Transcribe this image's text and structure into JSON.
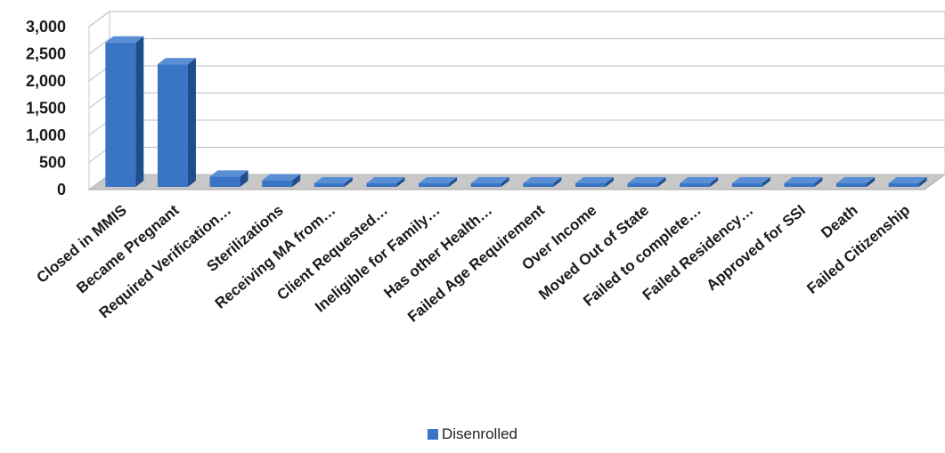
{
  "chart_data": {
    "type": "bar",
    "style": "3d-column",
    "categories": [
      "Closed in MMIS",
      "Became Pregnant",
      "Required Verification…",
      "Sterilizations",
      "Receiving MA from…",
      "Client Requested…",
      "Ineligible for Family…",
      "Has other Health…",
      "Failed Age Requirement",
      "Over Income",
      "Moved Out of State",
      "Failed to complete…",
      "Failed Residency…",
      "Approved for SSI",
      "Death",
      "Failed Citizenship"
    ],
    "series": [
      {
        "name": "Disenrolled",
        "color": "#3a74c4",
        "values": [
          2660,
          2260,
          190,
          120,
          60,
          40,
          35,
          30,
          25,
          20,
          15,
          12,
          8,
          5,
          3,
          2
        ]
      }
    ],
    "yticks": [
      "0",
      "500",
      "1,000",
      "1,500",
      "2,000",
      "2,500",
      "3,000"
    ],
    "ylim": [
      0,
      3000
    ],
    "grid": true,
    "legend_position": "bottom"
  }
}
